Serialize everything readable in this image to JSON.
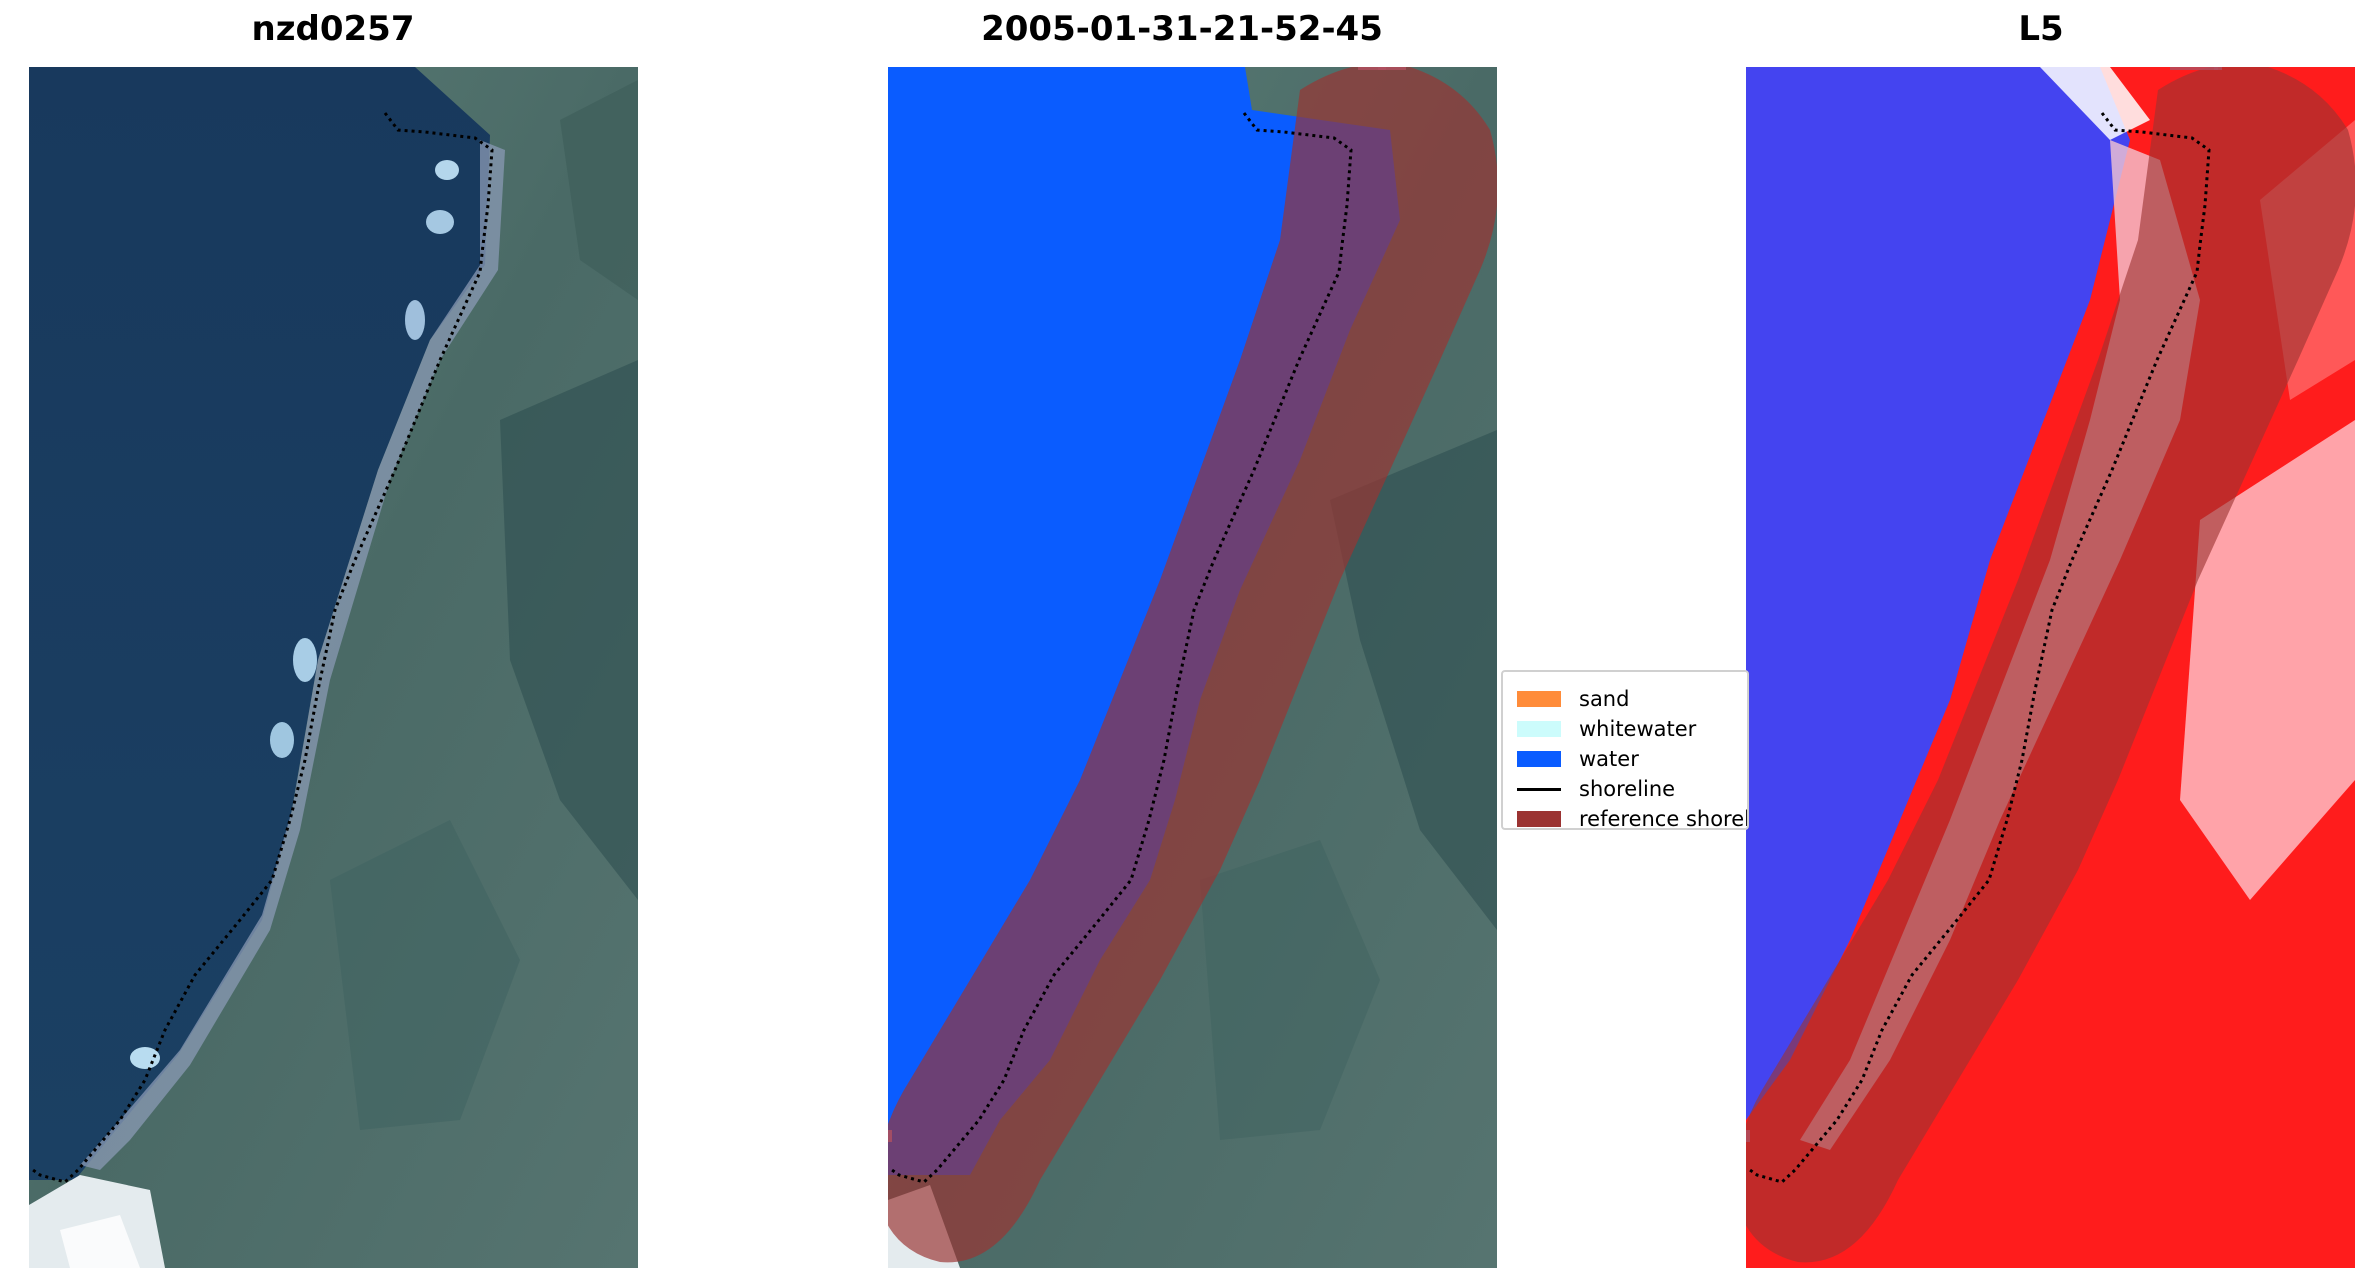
{
  "panels": [
    {
      "title": "nzd0257"
    },
    {
      "title": "2005-01-31-21-52-45"
    },
    {
      "title": "L5"
    }
  ],
  "legend": {
    "items": [
      {
        "label": "sand",
        "color": "#ff8c3a",
        "kind": "patch"
      },
      {
        "label": "whitewater",
        "color": "#ccfcfc",
        "kind": "patch"
      },
      {
        "label": "water",
        "color": "#0a5cff",
        "kind": "patch"
      },
      {
        "label": "shoreline",
        "color": "#000000",
        "kind": "line"
      },
      {
        "label": "reference shoreline",
        "color": "#9b3332",
        "kind": "patch"
      }
    ]
  },
  "colors": {
    "sea": "#1a3d62",
    "vegetation": "#4e6d69",
    "sand": "#ff8c3a",
    "whitewater": "#ccfcfc",
    "water": "#0a5cff",
    "reference_buffer": "#9b3332",
    "index_blue": "#3f3ff2",
    "index_red": "#ff1818"
  }
}
